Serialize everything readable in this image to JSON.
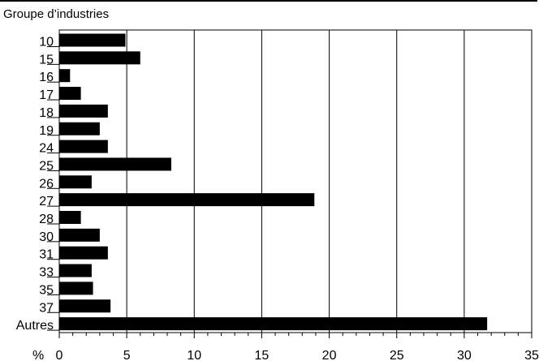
{
  "chart_data": {
    "type": "bar",
    "orientation": "horizontal",
    "title": "Groupe d’industries",
    "xlabel": "%",
    "categories": [
      "10",
      "15",
      "16",
      "17",
      "18",
      "19",
      "24",
      "25",
      "26",
      "27",
      "28",
      "30",
      "31",
      "33",
      "35",
      "37",
      "Autres"
    ],
    "values": [
      4.9,
      6.0,
      0.8,
      1.6,
      3.6,
      3.0,
      3.6,
      8.3,
      2.4,
      18.9,
      1.6,
      3.0,
      3.6,
      2.4,
      2.5,
      3.8,
      31.7
    ],
    "xlim": [
      0,
      35
    ],
    "xticks": [
      0,
      5,
      10,
      15,
      20,
      25,
      30,
      35
    ],
    "grid": "vertical",
    "bar_color": "#000000"
  }
}
